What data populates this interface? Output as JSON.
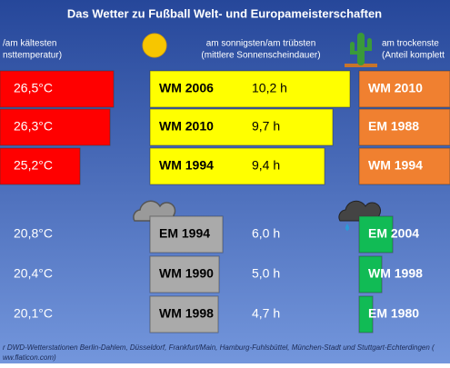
{
  "title": "Das Wetter zu Fußball Welt- und Europameisterschaften",
  "columns": [
    {
      "header": [
        "/am kältesten",
        "nsttemperatur)"
      ],
      "rows": [
        {
          "value": "26,5°C"
        },
        {
          "value": "26,3°C"
        },
        {
          "value": "25,2°C"
        },
        {
          "value": "20,8°C"
        },
        {
          "value": "20,4°C"
        },
        {
          "value": "20,1°C"
        }
      ]
    },
    {
      "header": [
        "am sonnigsten/am trübsten",
        "(mittlere Sonnenscheindauer)"
      ],
      "rows": [
        {
          "label": "WM 2006",
          "value": "10,2 h"
        },
        {
          "label": "WM 2010",
          "value": "9,7 h"
        },
        {
          "label": "WM 1994",
          "value": "9,4 h"
        },
        {
          "label": "EM 1994",
          "value": "6,0 h"
        },
        {
          "label": "WM 1990",
          "value": "5,0 h"
        },
        {
          "label": "WM 1998",
          "value": "4,7 h"
        }
      ]
    },
    {
      "header": [
        "am trockenste",
        "(Anteil komplett"
      ],
      "rows": [
        {
          "label": "WM 2010"
        },
        {
          "label": "EM 1988"
        },
        {
          "label": "WM 1994"
        },
        {
          "label": "EM 2004"
        },
        {
          "label": "WM 1998"
        },
        {
          "label": "EM 1980"
        }
      ]
    }
  ],
  "footer": [
    "r DWD-Wetterstationen Berlin-Dahlem, Düsseldorf, Frankfurt/Main, Hamburg-Fuhlsbüttel, München-Stadt und Stuttgart-Echterdingen (",
    "ww.flaticon.com)"
  ]
}
